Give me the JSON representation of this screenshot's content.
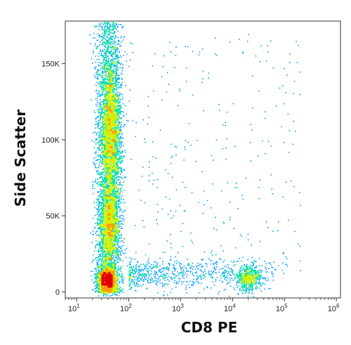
{
  "chart_data": {
    "type": "scatter",
    "title": "",
    "xlabel": "CD8 PE",
    "ylabel": "Side Scatter",
    "x_scale": "log",
    "x_range": [
      6,
      1200000
    ],
    "y_range": [
      -4000,
      178000
    ],
    "x_ticks": [
      {
        "value": 10,
        "base": "10",
        "exp": "1"
      },
      {
        "value": 100,
        "base": "10",
        "exp": "2"
      },
      {
        "value": 1000,
        "base": "10",
        "exp": "3"
      },
      {
        "value": 10000,
        "base": "10",
        "exp": "4"
      },
      {
        "value": 100000,
        "base": "10",
        "exp": "5"
      },
      {
        "value": 1000000,
        "base": "10",
        "exp": "6"
      }
    ],
    "y_ticks": [
      {
        "value": 0,
        "label": "0"
      },
      {
        "value": 50000,
        "label": "50K"
      },
      {
        "value": 100000,
        "label": "100K"
      },
      {
        "value": 150000,
        "label": "150K"
      }
    ],
    "density_colormap": [
      "#0000c8",
      "#00a0ff",
      "#00e0a0",
      "#d0f000",
      "#ffa000",
      "#e00000"
    ],
    "populations": [
      {
        "x_center": 40,
        "x_spread_log10": 0.12,
        "y_min": 0,
        "y_max": 178000,
        "count": 3500
      },
      {
        "x_center": 45,
        "y_center": 105000,
        "x_spread_log10": 0.1,
        "y_spread": 22000,
        "count": 2200
      },
      {
        "x_center": 42,
        "y_center": 45000,
        "x_spread_log10": 0.1,
        "y_spread": 12000,
        "count": 1200
      },
      {
        "x_center": 38,
        "y_center": 8000,
        "x_spread_log10": 0.09,
        "y_spread": 4000,
        "count": 1600
      },
      {
        "x_center": 20000,
        "y_center": 9000,
        "x_spread_log10": 0.12,
        "y_spread": 4000,
        "count": 500
      },
      {
        "x_start": 100,
        "x_end": 60000,
        "y_center": 12000,
        "y_spread": 5000,
        "count": 700
      },
      {
        "x_range": [
          100,
          200000
        ],
        "y_range": [
          10000,
          170000
        ],
        "count": 300
      }
    ]
  }
}
